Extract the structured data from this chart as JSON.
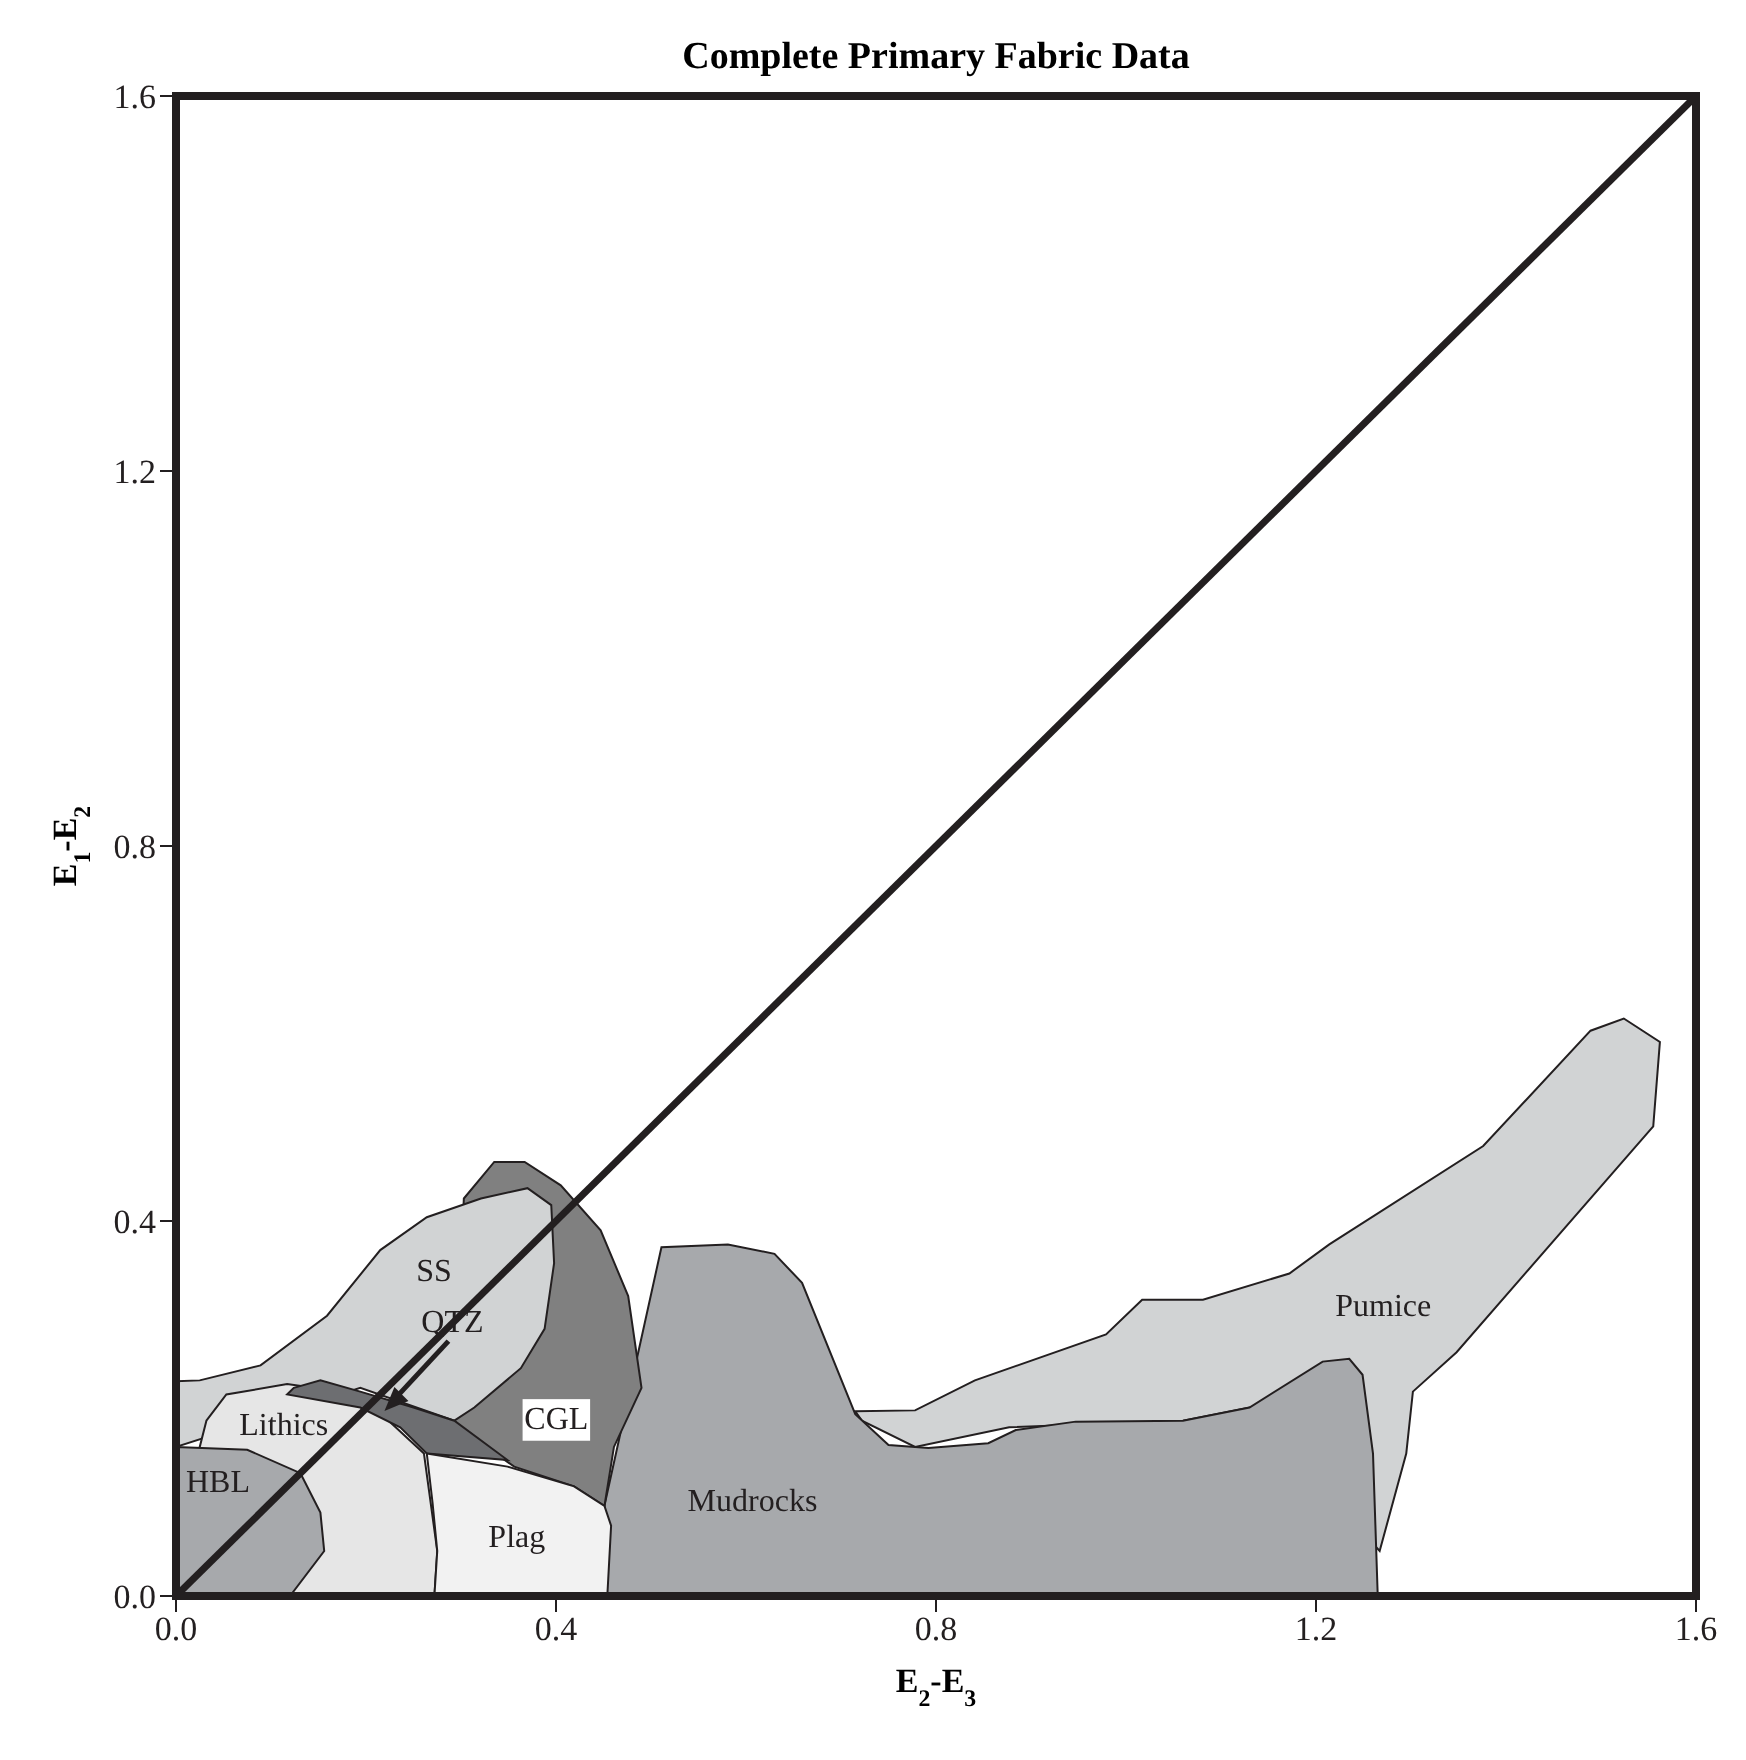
{
  "chart_data": {
    "type": "area",
    "title": "Complete Primary Fabric Data",
    "xlabel": "E$_{2}$-E$_{3}$",
    "ylabel": "E$_{1}$-E$_{2}$",
    "xlim": [
      0,
      1.6
    ],
    "ylim": [
      0,
      1.6
    ],
    "xticks": [
      {
        "value": 0,
        "label": "0.0"
      },
      0.4,
      0.8,
      1.2,
      1.6
    ],
    "yticks": [
      {
        "value": 0,
        "label": "0.0"
      },
      0.4,
      0.8,
      1.2,
      1.6
    ],
    "series": [
      {
        "name": "Pumice",
        "color": "#d1d3d4",
        "x": [
          0.715,
          0.778,
          0.841,
          0.979,
          1.017,
          1.081,
          1.172,
          1.214,
          1.376,
          1.489,
          1.524,
          1.562,
          1.555,
          1.348,
          1.302,
          1.295,
          1.267,
          1.13,
          1.06,
          0.877,
          0.778,
          0.722
        ],
        "values": [
          0.197,
          0.198,
          0.23,
          0.279,
          0.316,
          0.316,
          0.344,
          0.375,
          0.48,
          0.603,
          0.616,
          0.591,
          0.501,
          0.26,
          0.218,
          0.152,
          0.048,
          0.201,
          0.187,
          0.18,
          0.159,
          0.187
        ]
      },
      {
        "name": "Mudrocks",
        "color": "#a7a9ac",
        "x": [
          0.43,
          0.511,
          0.581,
          0.63,
          0.659,
          0.715,
          0.75,
          0.792,
          0.855,
          0.884,
          0.947,
          1.06,
          1.13,
          1.207,
          1.235,
          1.249,
          1.26,
          1.265
        ],
        "values": [
          0,
          0.372,
          0.375,
          0.365,
          0.334,
          0.194,
          0.161,
          0.158,
          0.163,
          0.177,
          0.186,
          0.187,
          0.201,
          0.25,
          0.253,
          0.236,
          0.152,
          0
        ]
      },
      {
        "name": "CGL",
        "color": "#808080",
        "x": [
          0.303,
          0.335,
          0.367,
          0.405,
          0.447,
          0.476,
          0.49,
          0.461,
          0.451,
          0.419,
          0.356,
          0.307,
          0.293
        ],
        "values": [
          0.424,
          0.463,
          0.463,
          0.438,
          0.39,
          0.32,
          0.222,
          0.159,
          0.096,
          0.117,
          0.138,
          0.173,
          0.187
        ]
      },
      {
        "name": "SS",
        "color": "#d1d3d4",
        "x": [
          0,
          0.025,
          0.089,
          0.159,
          0.215,
          0.264,
          0.321,
          0.37,
          0.395,
          0.398,
          0.388,
          0.363,
          0.314,
          0.293,
          0.194,
          0
        ],
        "values": [
          0.229,
          0.23,
          0.246,
          0.299,
          0.369,
          0.404,
          0.424,
          0.435,
          0.417,
          0.355,
          0.285,
          0.243,
          0.201,
          0.187,
          0.222,
          0.159
        ]
      },
      {
        "name": "Lithics",
        "color": "#e6e6e6",
        "x": [
          0.032,
          0.053,
          0.117,
          0.194,
          0.261,
          0.275,
          0.272,
          0.124,
          0.025
        ],
        "values": [
          0.187,
          0.215,
          0.226,
          0.215,
          0.152,
          0.048,
          0,
          0,
          0.159
        ]
      },
      {
        "name": "QTZ",
        "color": "#6d6e71",
        "x": [
          0.124,
          0.152,
          0.194,
          0.25,
          0.293,
          0.349,
          0.264,
          0.236,
          0.194,
          0.117
        ],
        "values": [
          0.222,
          0.23,
          0.218,
          0.201,
          0.187,
          0.145,
          0.152,
          0.18,
          0.201,
          0.215
        ]
      },
      {
        "name": "Plag",
        "color": "#f2f2f2",
        "x": [
          0.272,
          0.275,
          0.27,
          0.264,
          0.349,
          0.419,
          0.451,
          0.458,
          0.454
        ],
        "values": [
          0,
          0.048,
          0.1,
          0.152,
          0.138,
          0.117,
          0.096,
          0.075,
          0
        ]
      },
      {
        "name": "HBL",
        "color": "#a7a9ac",
        "x": [
          0,
          0.075,
          0.131,
          0.152,
          0.156,
          0.12,
          0
        ],
        "values": [
          0.159,
          0.156,
          0.131,
          0.089,
          0.048,
          0,
          0
        ]
      },
      {
        "type": "line",
        "color": "#231f20",
        "x": [
          0,
          1.6
        ],
        "values": [
          0,
          1.6
        ]
      }
    ]
  }
}
